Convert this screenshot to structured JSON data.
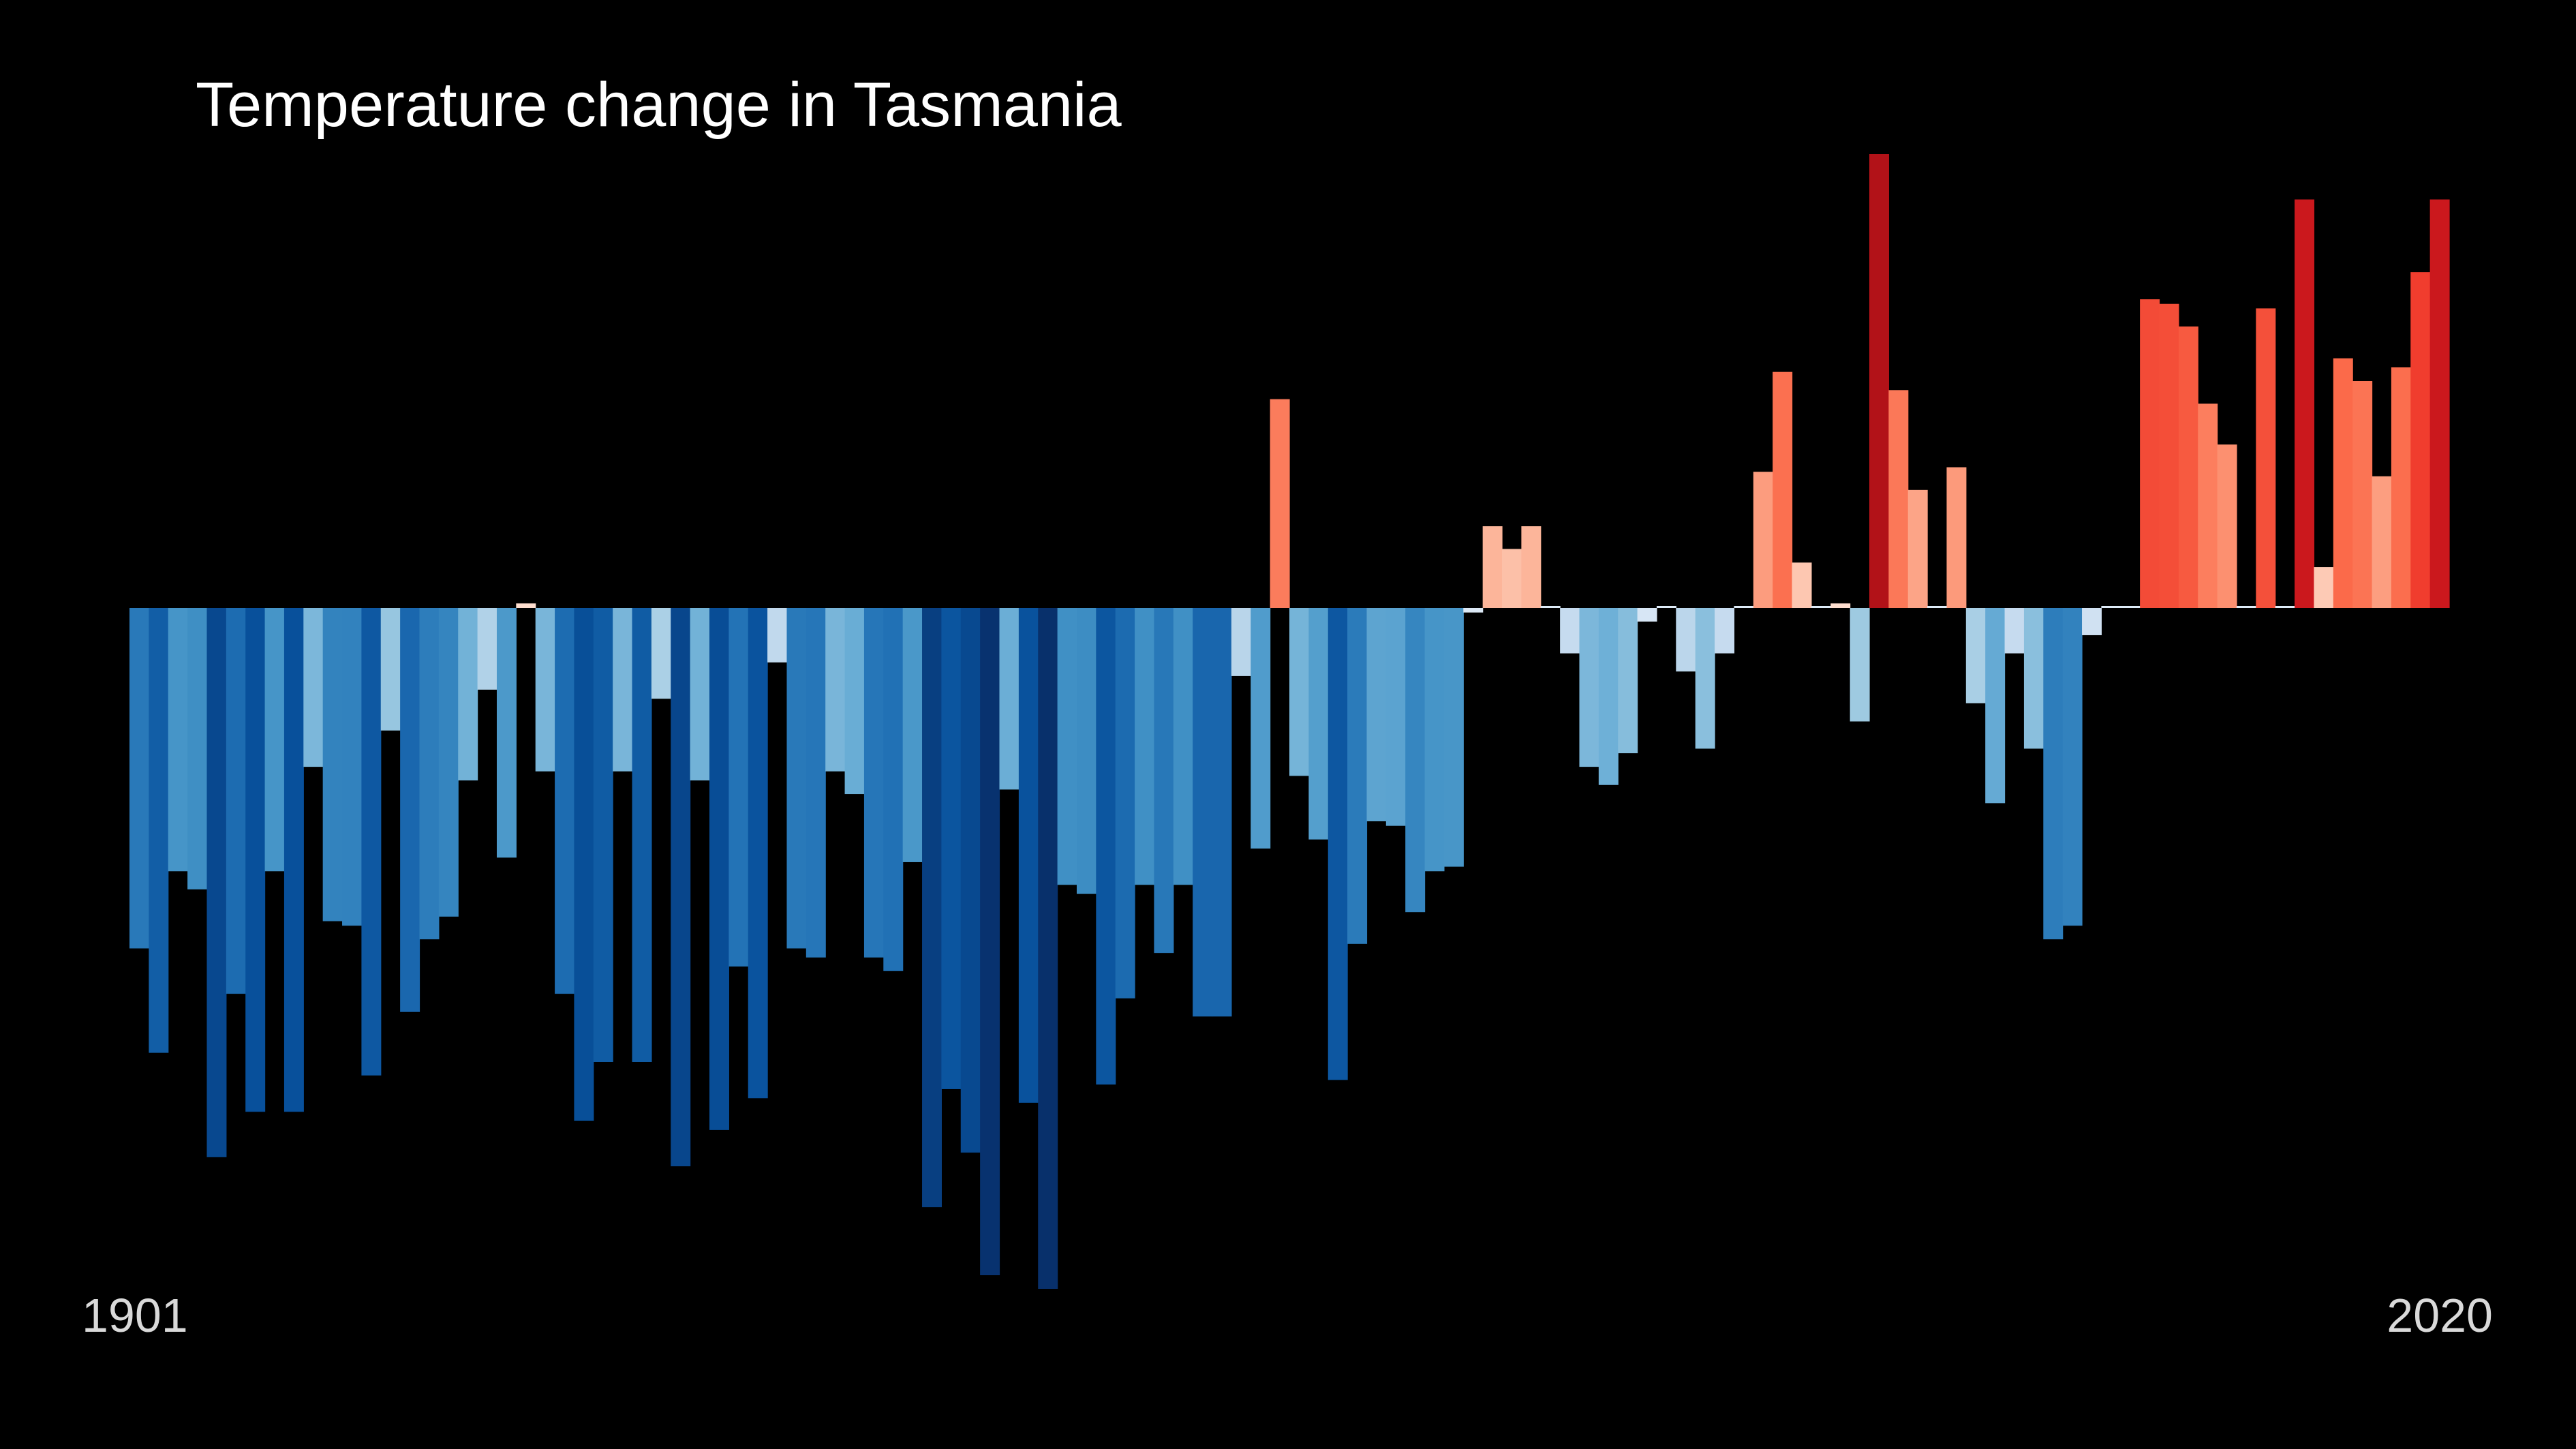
{
  "chart_data": {
    "type": "bar",
    "title": "Temperature change in Tasmania",
    "x_start_label": "1901",
    "x_end_label": "2020",
    "years": [
      1901,
      1902,
      1903,
      1904,
      1905,
      1906,
      1907,
      1908,
      1909,
      1910,
      1911,
      1912,
      1913,
      1914,
      1915,
      1916,
      1917,
      1918,
      1919,
      1920,
      1921,
      1922,
      1923,
      1924,
      1925,
      1926,
      1927,
      1928,
      1929,
      1930,
      1931,
      1932,
      1933,
      1934,
      1935,
      1936,
      1937,
      1938,
      1939,
      1940,
      1941,
      1942,
      1943,
      1944,
      1945,
      1946,
      1947,
      1948,
      1949,
      1950,
      1951,
      1952,
      1953,
      1954,
      1955,
      1956,
      1957,
      1958,
      1959,
      1960,
      1961,
      1962,
      1963,
      1964,
      1965,
      1966,
      1967,
      1968,
      1969,
      1970,
      1971,
      1972,
      1973,
      1974,
      1975,
      1976,
      1977,
      1978,
      1979,
      1980,
      1981,
      1982,
      1983,
      1984,
      1985,
      1986,
      1987,
      1988,
      1989,
      1990,
      1991,
      1992,
      1993,
      1994,
      1995,
      1996,
      1997,
      1998,
      1999,
      2000,
      2001,
      2002,
      2003,
      2004,
      2005,
      2006,
      2007,
      2008,
      2009,
      2010,
      2011,
      2012,
      2013,
      2014,
      2015,
      2016,
      2017,
      2018,
      2019,
      2020
    ],
    "values": [
      -0.75,
      -0.98,
      -0.58,
      -0.62,
      -1.21,
      -0.85,
      -1.11,
      -0.58,
      -1.11,
      -0.35,
      -0.69,
      -0.7,
      -1.03,
      -0.27,
      -0.89,
      -0.73,
      -0.68,
      -0.38,
      -0.18,
      -0.55,
      0.01,
      -0.36,
      -0.85,
      -1.13,
      -1.0,
      -0.36,
      -1.0,
      -0.2,
      -1.23,
      -0.38,
      -1.15,
      -0.79,
      -1.08,
      -0.12,
      -0.75,
      -0.77,
      -0.36,
      -0.41,
      -0.77,
      -0.8,
      -0.56,
      -1.32,
      -1.06,
      -1.2,
      -1.47,
      -0.4,
      -1.09,
      -1.5,
      -0.61,
      -0.63,
      -1.05,
      -0.86,
      -0.61,
      -0.76,
      -0.61,
      -0.9,
      -0.9,
      -0.15,
      -0.53,
      0.46,
      -0.37,
      -0.51,
      -1.04,
      -0.74,
      -0.47,
      -0.48,
      -0.67,
      -0.58,
      -0.57,
      -0.01,
      0.18,
      0.13,
      0.18,
      0.0,
      -0.1,
      -0.35,
      -0.39,
      -0.32,
      -0.03,
      0.0,
      -0.14,
      -0.31,
      -0.1,
      0.0,
      0.3,
      0.52,
      0.1,
      0.0,
      0.01,
      -0.25,
      1.0,
      0.48,
      0.26,
      0.0,
      0.31,
      -0.21,
      -0.43,
      -0.1,
      -0.31,
      -0.73,
      -0.7,
      -0.06,
      0.0,
      0.0,
      0.68,
      0.67,
      0.62,
      0.45,
      0.36,
      0.0,
      0.66,
      0.0,
      0.9,
      0.09,
      0.55,
      0.5,
      0.29,
      0.53,
      0.74,
      0.9
    ]
  }
}
